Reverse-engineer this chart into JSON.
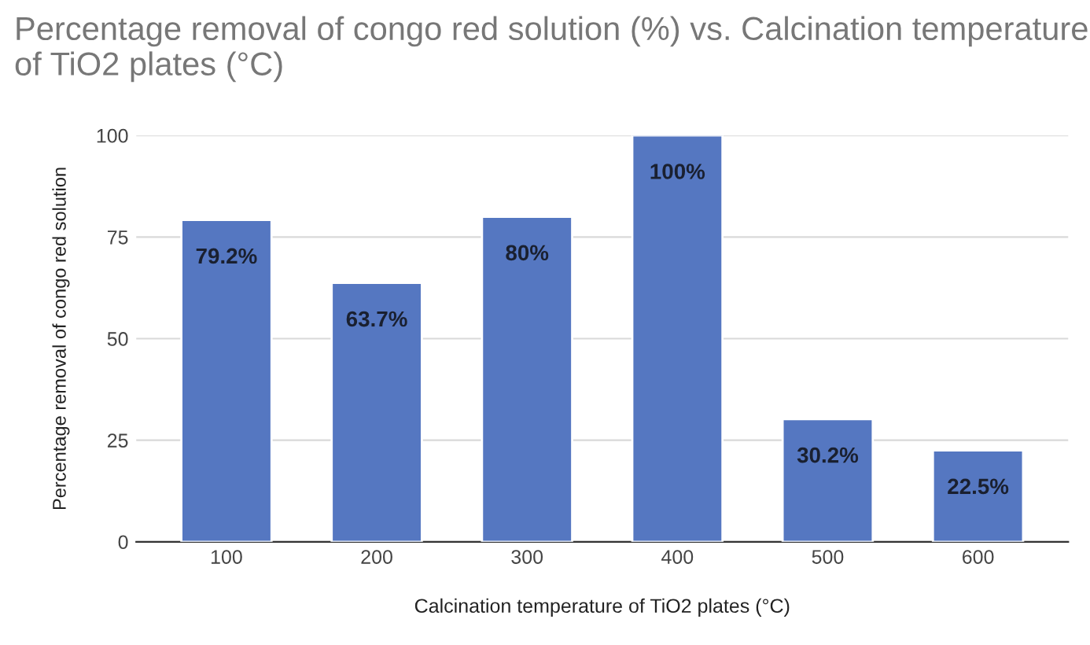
{
  "chart_data": {
    "type": "bar",
    "title": "Percentage removal of congo red solution (%) vs. Calcination temperature of TiO2 plates (°C)",
    "xlabel": "Calcination temperature of TiO2 plates (°C)",
    "ylabel": "Percentage removal of congo red solution",
    "categories": [
      "100",
      "200",
      "300",
      "400",
      "500",
      "600"
    ],
    "values": [
      79.2,
      63.7,
      80,
      100,
      30.2,
      22.5
    ],
    "color": "#5577c1",
    "value_labels": [
      "79.2%",
      "63.7%",
      "80%",
      "100%",
      "30.2%",
      "22.5%"
    ],
    "ylim": [
      0,
      100
    ],
    "yticks": [
      0,
      25,
      50,
      75,
      100
    ],
    "grid": "y"
  }
}
